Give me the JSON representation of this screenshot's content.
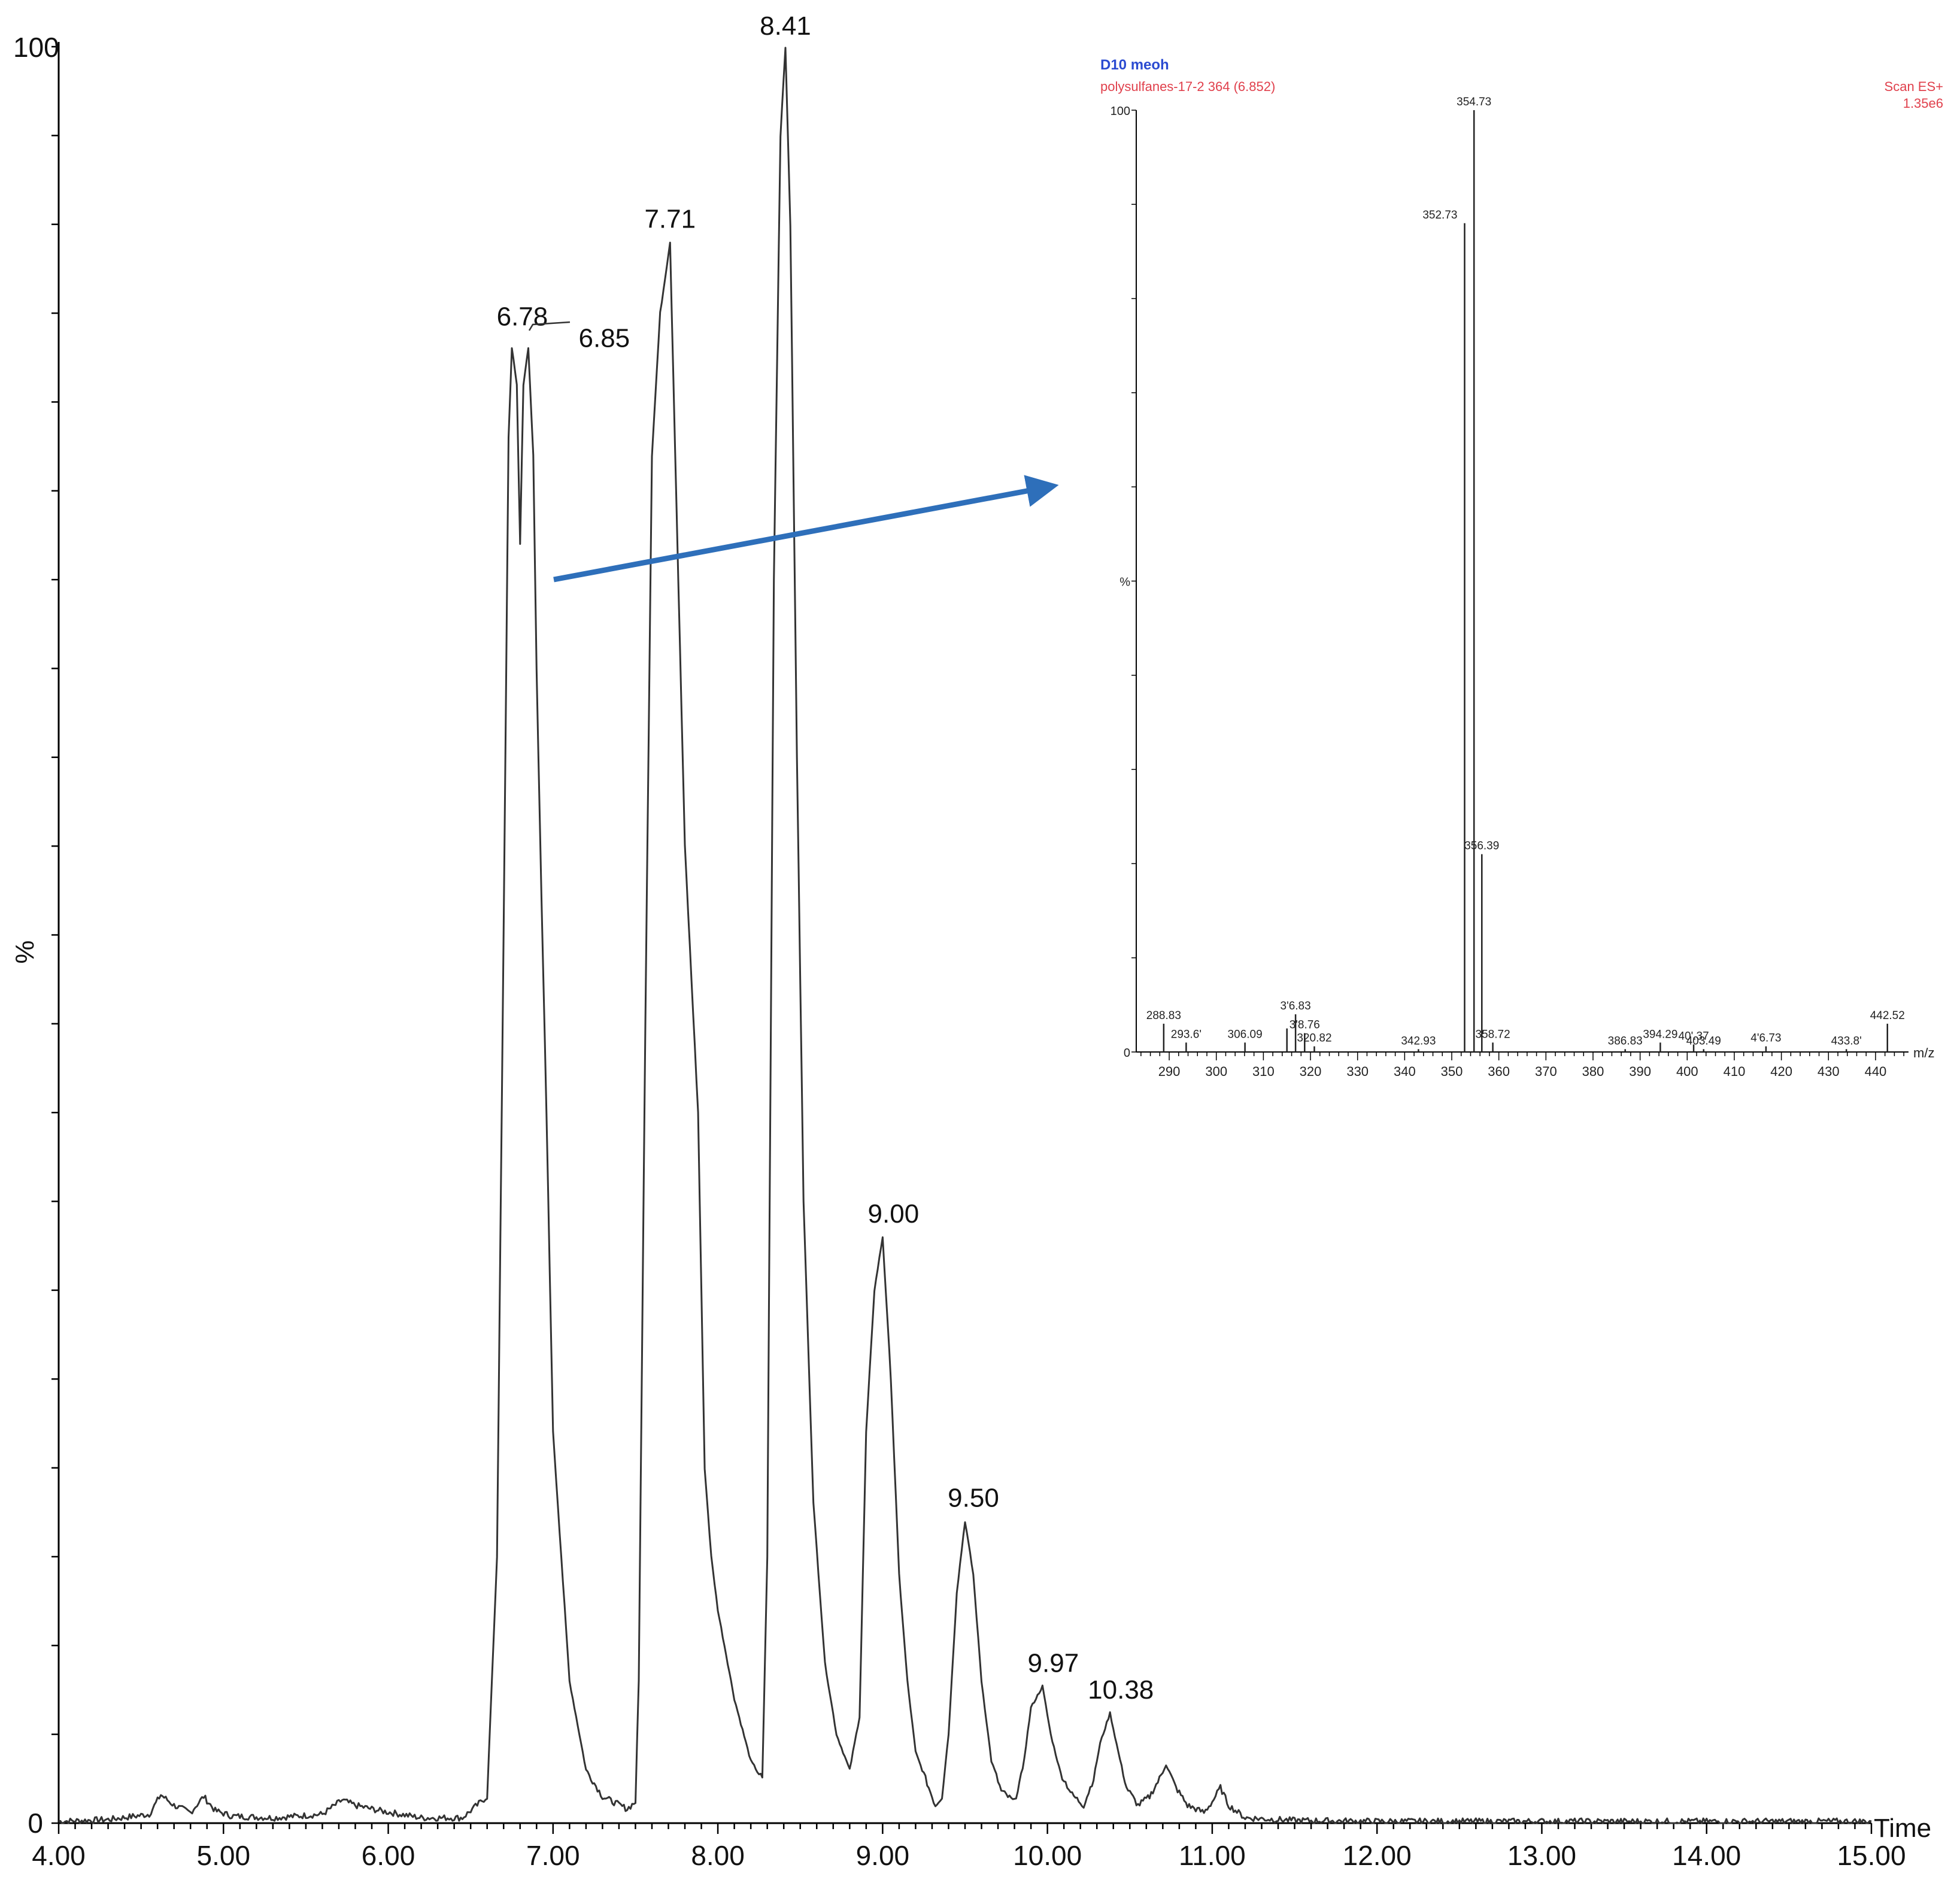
{
  "chart_data": [
    {
      "type": "line",
      "xlabel": "Time",
      "ylabel": "%",
      "xlim": [
        4.0,
        15.0
      ],
      "ylim": [
        0,
        100
      ],
      "x_ticks": [
        "4.00",
        "5.00",
        "6.00",
        "7.00",
        "8.00",
        "9.00",
        "10.00",
        "11.00",
        "12.00",
        "13.00",
        "14.00",
        "15.00"
      ],
      "y_ticks": [
        "0",
        "100"
      ],
      "peak_labels": [
        {
          "x": 6.78,
          "y": 83.5,
          "text": "6.78"
        },
        {
          "x": 6.85,
          "y": 83.5,
          "text": "6.85"
        },
        {
          "x": 7.71,
          "y": 89,
          "text": "7.71"
        },
        {
          "x": 8.41,
          "y": 100,
          "text": "8.41"
        },
        {
          "x": 9.0,
          "y": 33,
          "text": "9.00"
        },
        {
          "x": 9.5,
          "y": 17,
          "text": "9.50"
        },
        {
          "x": 9.97,
          "y": 7.7,
          "text": "9.97"
        },
        {
          "x": 10.38,
          "y": 6.2,
          "text": "10.38"
        }
      ],
      "series": [
        {
          "x": [
            4.0,
            4.3,
            4.55,
            4.62,
            4.7,
            4.8,
            4.88,
            4.95,
            5.05,
            5.3,
            5.6,
            5.72,
            5.8,
            5.95,
            6.2,
            6.45,
            6.6,
            6.66,
            6.7,
            6.73,
            6.75,
            6.78,
            6.8,
            6.82,
            6.85,
            6.88,
            6.9,
            6.93,
            6.96,
            7.0,
            7.1,
            7.2,
            7.3,
            7.45,
            7.5,
            7.52,
            7.56,
            7.6,
            7.65,
            7.71,
            7.76,
            7.8,
            7.88,
            7.92,
            7.96,
            8.0,
            8.1,
            8.2,
            8.27,
            8.3,
            8.34,
            8.38,
            8.41,
            8.44,
            8.48,
            8.52,
            8.58,
            8.65,
            8.72,
            8.8,
            8.86,
            8.9,
            8.95,
            9.0,
            9.05,
            9.1,
            9.15,
            9.2,
            9.28,
            9.32,
            9.36,
            9.4,
            9.45,
            9.5,
            9.55,
            9.6,
            9.66,
            9.72,
            9.8,
            9.85,
            9.9,
            9.97,
            10.02,
            10.08,
            10.15,
            10.22,
            10.28,
            10.32,
            10.38,
            10.43,
            10.48,
            10.55,
            10.62,
            10.68,
            10.72,
            10.78,
            10.85,
            10.95,
            11.0,
            11.05,
            11.1,
            11.2,
            11.5,
            12.0,
            12.5,
            13.0,
            13.5,
            14.0,
            14.5,
            15.0
          ],
          "y": [
            0.1,
            0.2,
            0.5,
            1.6,
            1.0,
            0.6,
            1.5,
            0.7,
            0.4,
            0.3,
            0.5,
            1.3,
            1.0,
            0.7,
            0.3,
            0.3,
            1.5,
            15,
            50,
            78,
            83,
            81,
            72,
            81,
            83,
            77,
            65,
            52,
            40,
            22,
            8,
            3,
            1.5,
            0.8,
            1.2,
            8,
            45,
            77,
            85,
            89,
            70,
            55,
            40,
            20,
            15,
            12,
            7,
            3.5,
            2.5,
            15,
            70,
            95,
            100,
            90,
            60,
            35,
            18,
            9,
            5,
            3,
            6,
            22,
            30,
            33,
            25,
            14,
            8,
            4,
            2,
            1,
            1.5,
            5,
            13,
            17,
            14,
            8,
            3.5,
            1.8,
            1.2,
            3,
            6.5,
            7.7,
            5,
            2.8,
            1.6,
            1.0,
            2.5,
            4.5,
            6.2,
            4,
            2,
            1,
            1.5,
            2.5,
            3.3,
            2,
            1,
            0.6,
            1.2,
            2.0,
            1.0,
            0.3,
            0.15,
            0.1,
            0.1,
            0.1,
            0.1,
            0.1,
            0.1,
            0.1
          ]
        }
      ]
    },
    {
      "type": "bar",
      "title": "D10 meoh",
      "subtitle": "polysulfanes-17-2 364 (6.852)",
      "scan_mode": "Scan ES+",
      "scale": "1.35e6",
      "xlabel": "m/z",
      "ylim": [
        0,
        100
      ],
      "y_ticks": [
        "0",
        "%",
        "100"
      ],
      "x_ticks": [
        "290",
        "300",
        "310",
        "320",
        "330",
        "340",
        "350",
        "360",
        "370",
        "380",
        "390",
        "400",
        "410",
        "420",
        "430",
        "440"
      ],
      "x_domain": [
        283,
        447
      ],
      "peaks": [
        {
          "mz": 288.83,
          "i": 3.0,
          "label": "288.83"
        },
        {
          "mz": 293.6,
          "i": 1.0,
          "label": "293.6'"
        },
        {
          "mz": 306.09,
          "i": 1.0,
          "label": "306.09"
        },
        {
          "mz": 315.0,
          "i": 2.5,
          "label": ""
        },
        {
          "mz": 316.83,
          "i": 4.0,
          "label": "3'6.83"
        },
        {
          "mz": 318.76,
          "i": 2.0,
          "label": "3'8.76"
        },
        {
          "mz": 320.82,
          "i": 0.6,
          "label": "320.82"
        },
        {
          "mz": 342.93,
          "i": 0.3,
          "label": "342.93"
        },
        {
          "mz": 352.73,
          "i": 88,
          "label": "352.73"
        },
        {
          "mz": 354.73,
          "i": 100,
          "label": "354.73"
        },
        {
          "mz": 356.39,
          "i": 21,
          "label": "356.39"
        },
        {
          "mz": 358.72,
          "i": 1.0,
          "label": "358.72"
        },
        {
          "mz": 386.83,
          "i": 0.3,
          "label": "386.83"
        },
        {
          "mz": 394.29,
          "i": 1.0,
          "label": "394.29"
        },
        {
          "mz": 401.37,
          "i": 0.8,
          "label": "40'.37"
        },
        {
          "mz": 403.49,
          "i": 0.3,
          "label": "403.49"
        },
        {
          "mz": 416.73,
          "i": 0.6,
          "label": "4'6.73"
        },
        {
          "mz": 433.8,
          "i": 0.3,
          "label": "433.8'"
        },
        {
          "mz": 442.52,
          "i": 3.0,
          "label": "442.52"
        }
      ]
    }
  ],
  "colors": {
    "trace": "#333333",
    "arrow": "#2e6fba",
    "inset_title": "#2b4bd1",
    "inset_red": "#e0404c"
  }
}
